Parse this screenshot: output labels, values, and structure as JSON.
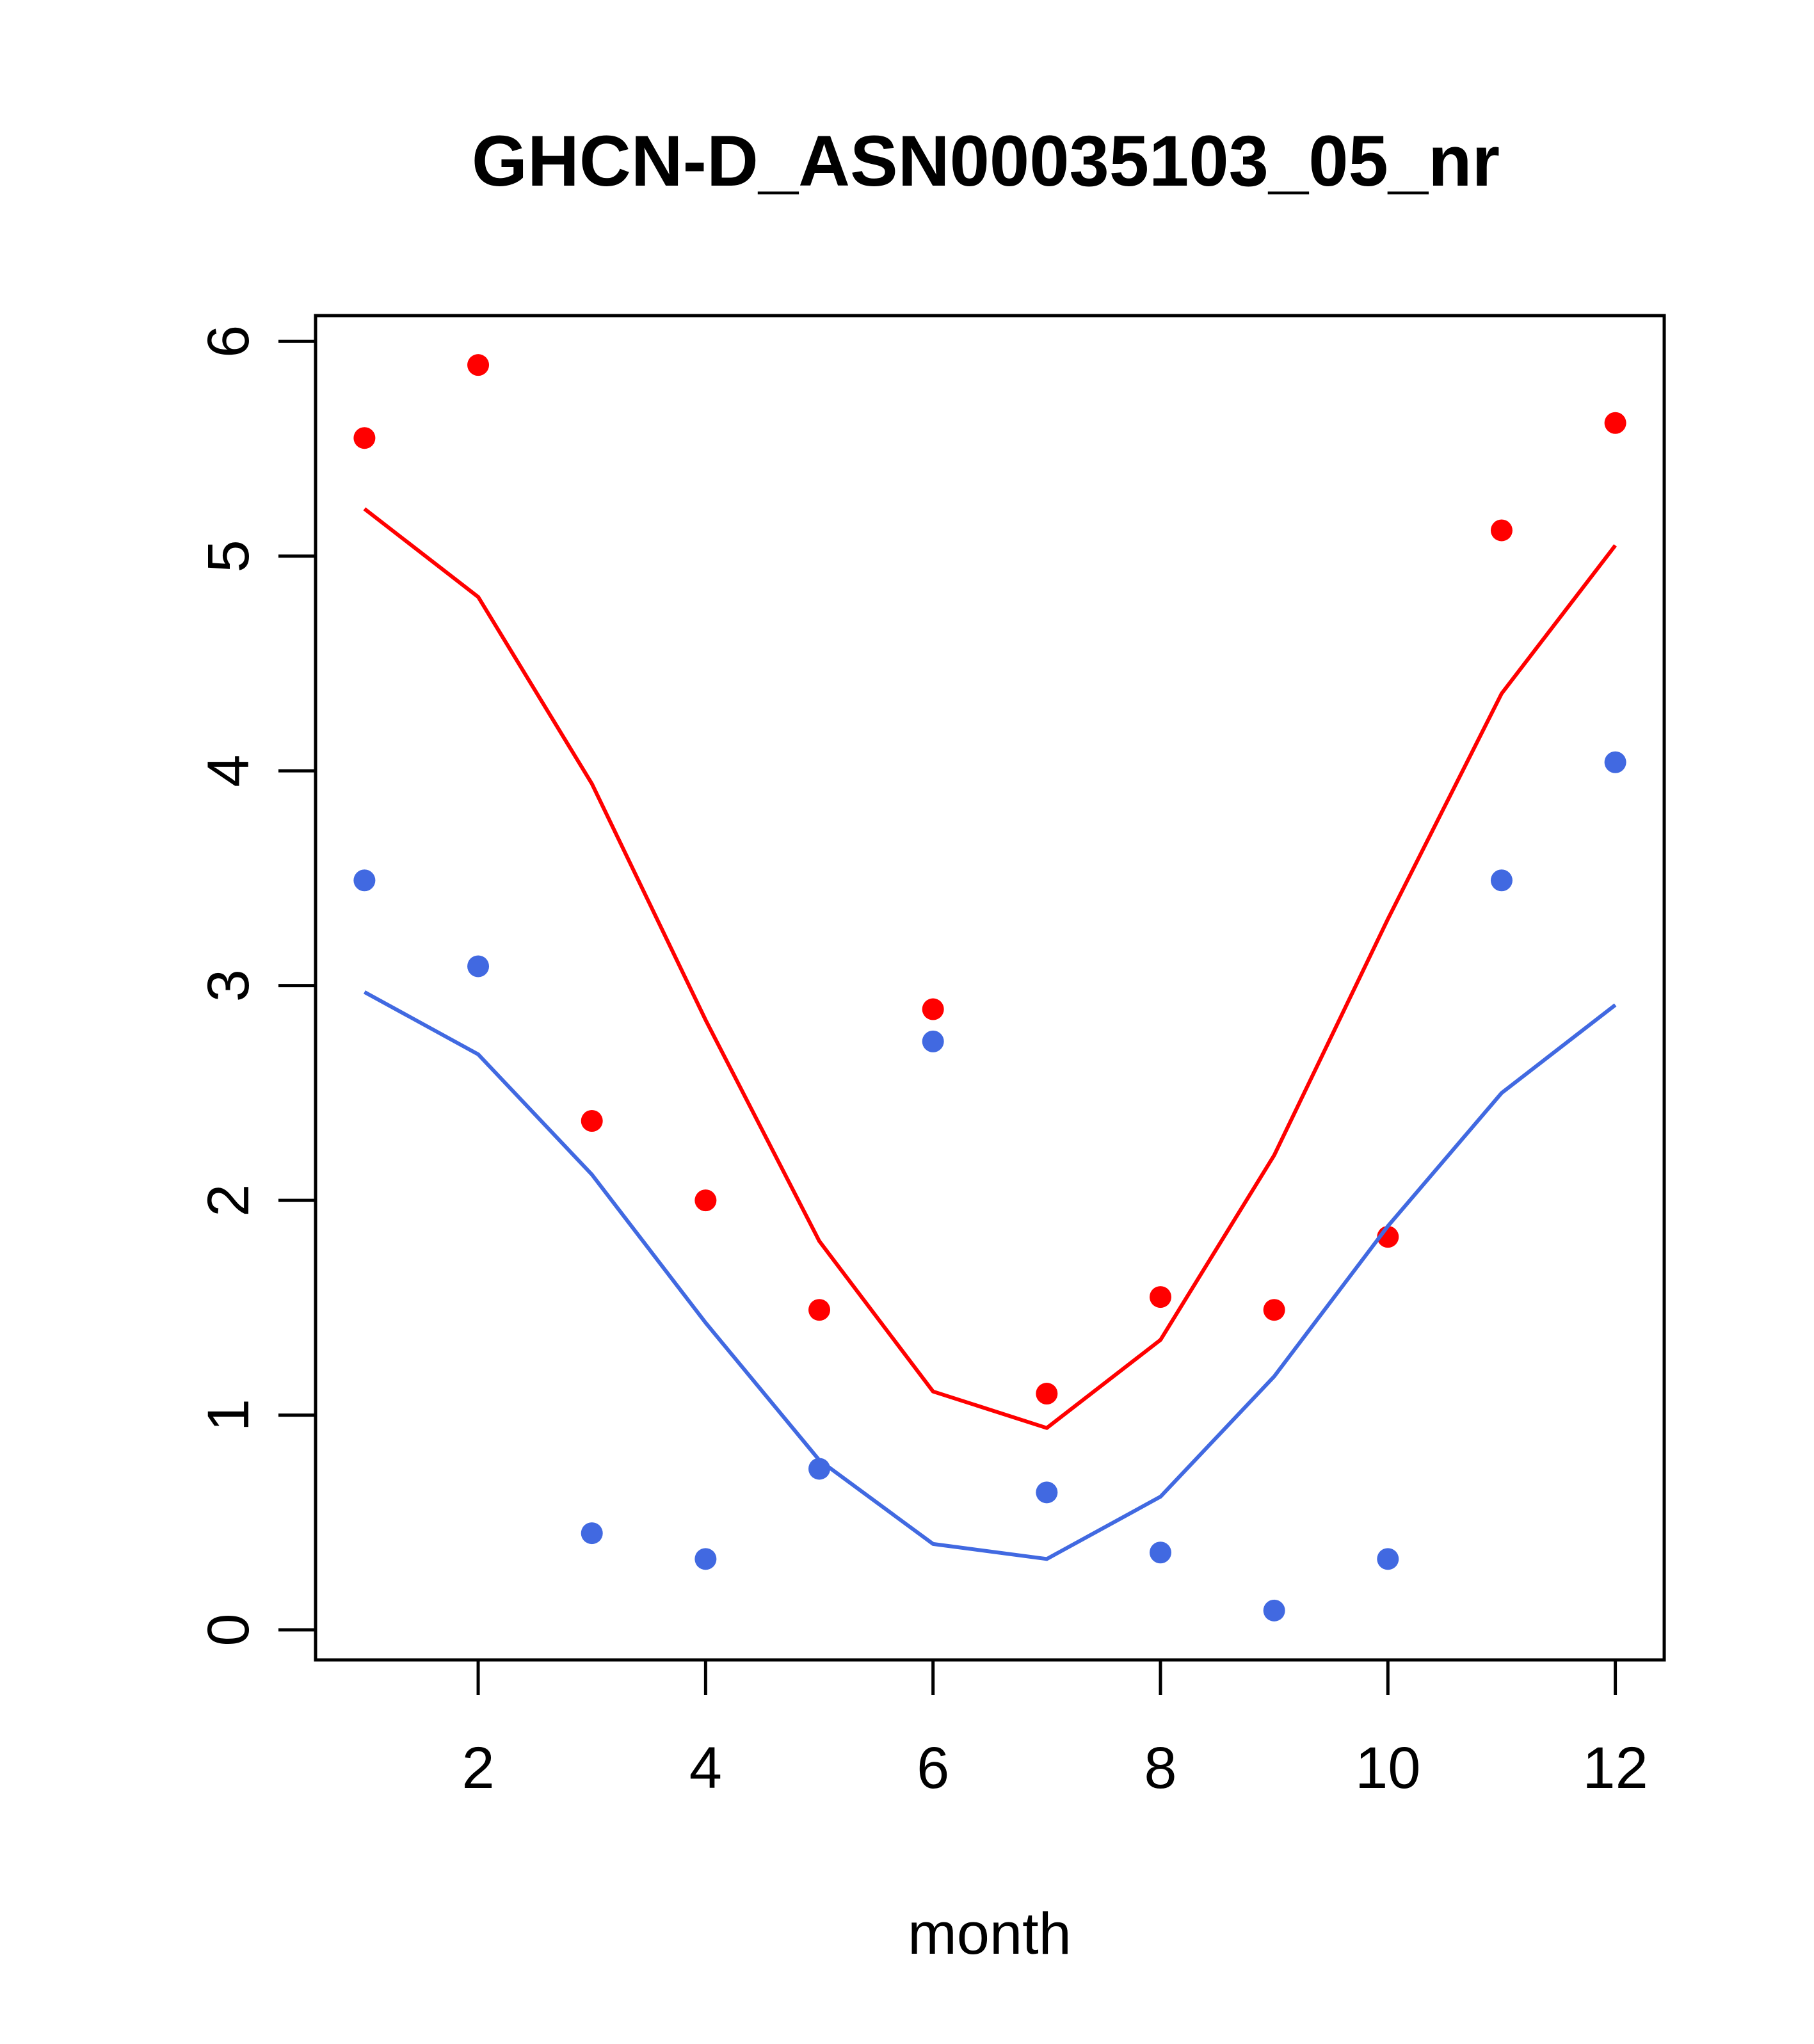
{
  "chart_data": {
    "type": "scatter",
    "title": "GHCN-D_ASN00035103_05_nr",
    "xlabel": "month",
    "ylabel": "",
    "xlim": [
      0.57,
      12.43
    ],
    "ylim": [
      -0.14,
      6.12
    ],
    "x_ticks": [
      2,
      4,
      6,
      8,
      10,
      12
    ],
    "y_ticks": [
      0,
      1,
      2,
      3,
      4,
      5,
      6
    ],
    "grid": false,
    "legend": "none",
    "months": [
      1,
      2,
      3,
      4,
      5,
      6,
      7,
      8,
      9,
      10,
      11,
      12
    ],
    "series": [
      {
        "color": "#ff0000",
        "points": [
          5.55,
          5.89,
          2.37,
          2.0,
          1.49,
          2.89,
          1.1,
          1.55,
          1.49,
          1.83,
          5.12,
          5.62
        ],
        "line": [
          5.22,
          4.81,
          3.94,
          2.84,
          1.81,
          1.11,
          0.94,
          1.35,
          2.21,
          3.31,
          4.36,
          5.05
        ]
      },
      {
        "color": "#4169e1",
        "points": [
          3.49,
          3.09,
          0.45,
          0.33,
          0.75,
          2.74,
          0.64,
          0.36,
          0.09,
          0.33,
          3.49,
          4.04
        ],
        "line": [
          2.97,
          2.68,
          2.12,
          1.43,
          0.79,
          0.4,
          0.33,
          0.62,
          1.18,
          1.88,
          2.5,
          2.91
        ]
      }
    ]
  }
}
